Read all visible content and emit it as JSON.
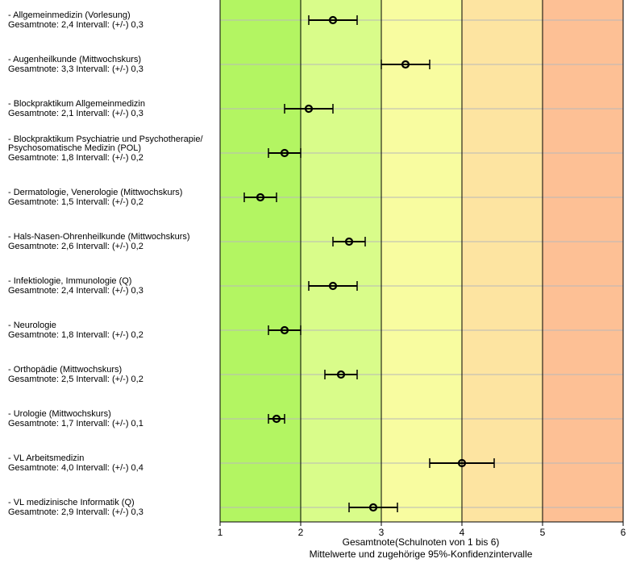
{
  "chart_data": {
    "type": "scatter",
    "xlim": [
      1,
      6
    ],
    "x_ticks": [
      "1",
      "2",
      "3",
      "4",
      "5",
      "6"
    ],
    "xlabel": "Gesamtnote(Schulnoten von 1 bis 6)",
    "subtitle": "Mittelwerte und zugehörige 95%-Konfidenzintervalle",
    "band_colors": [
      "#b3f562",
      "#d9fc8a",
      "#f8fca0",
      "#fde4a1",
      "#fdc095"
    ],
    "grid": true,
    "items": [
      {
        "label": "- Allgemeinmedizin (Vorlesung)\nGesamtnote: 2,4 Intervall: (+/-) 0,3",
        "mean": 2.4,
        "ci": 0.3
      },
      {
        "label": "- Augenheilkunde (Mittwochskurs)\nGesamtnote: 3,3 Intervall: (+/-) 0,3",
        "mean": 3.3,
        "ci": 0.3
      },
      {
        "label": "- Blockpraktikum Allgemeinmedizin\nGesamtnote: 2,1 Intervall: (+/-) 0,3",
        "mean": 2.1,
        "ci": 0.3
      },
      {
        "label": "- Blockpraktikum Psychiatrie und Psychotherapie/\nPsychosomatische Medizin (POL)\nGesamtnote: 1,8 Intervall: (+/-) 0,2",
        "mean": 1.8,
        "ci": 0.2
      },
      {
        "label": "- Dermatologie, Venerologie (Mittwochskurs)\nGesamtnote: 1,5 Intervall: (+/-) 0,2",
        "mean": 1.5,
        "ci": 0.2
      },
      {
        "label": "- Hals-Nasen-Ohrenheilkunde (Mittwochskurs)\nGesamtnote: 2,6 Intervall: (+/-) 0,2",
        "mean": 2.6,
        "ci": 0.2
      },
      {
        "label": "- Infektiologie, Immunologie (Q)\nGesamtnote: 2,4 Intervall: (+/-) 0,3",
        "mean": 2.4,
        "ci": 0.3
      },
      {
        "label": "- Neurologie\nGesamtnote: 1,8 Intervall: (+/-) 0,2",
        "mean": 1.8,
        "ci": 0.2
      },
      {
        "label": "- Orthopädie (Mittwochskurs)\nGesamtnote: 2,5 Intervall: (+/-) 0,2",
        "mean": 2.5,
        "ci": 0.2
      },
      {
        "label": "- Urologie (Mittwochskurs)\nGesamtnote: 1,7 Intervall: (+/-) 0,1",
        "mean": 1.7,
        "ci": 0.1
      },
      {
        "label": "- VL Arbeitsmedizin\nGesamtnote: 4,0 Intervall: (+/-) 0,4",
        "mean": 4.0,
        "ci": 0.4
      },
      {
        "label": "- VL medizinische Informatik (Q)\nGesamtnote: 2,9 Intervall: (+/-) 0,3",
        "mean": 2.9,
        "ci": 0.3
      }
    ]
  }
}
